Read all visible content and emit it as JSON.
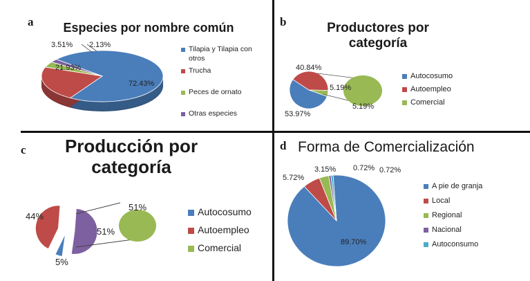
{
  "panels": [
    {
      "id": "a",
      "letter": "a",
      "title_lines": [
        "Especies por nombre común"
      ],
      "colors": [
        "#4a7ebb",
        "#be4b48",
        "#98b954",
        "#7d60a0"
      ],
      "legend_labels": [
        [
          "Tilapia y Tilapia con",
          "otros"
        ],
        [
          "Trucha"
        ],
        [
          "Peces de ornato"
        ],
        [
          "Otras especies"
        ]
      ],
      "data_labels": [
        "72.43%",
        "21.93%",
        "3.51%",
        "2.13%"
      ]
    },
    {
      "id": "b",
      "letter": "b",
      "title_lines": [
        "Productores por",
        "categoría"
      ],
      "colors": [
        "#4a7ebb",
        "#be4b48",
        "#98b954"
      ],
      "legend_labels": [
        [
          "Autocosumo"
        ],
        [
          "Autoempleo"
        ],
        [
          "Comercial"
        ]
      ],
      "data_labels": [
        "53.97%",
        "40.84%",
        "5.19%",
        "5.19%"
      ]
    },
    {
      "id": "c",
      "letter": "c",
      "title_lines": [
        "Producción por",
        "categoría"
      ],
      "colors": [
        "#4a7ebb",
        "#be4b48",
        "#98b954",
        "#7d60a0"
      ],
      "legend_labels": [
        [
          "Autocosumo"
        ],
        [
          "Autoempleo"
        ],
        [
          "Comercial"
        ]
      ],
      "data_labels": [
        "5%",
        "44%",
        "51%",
        "51%"
      ]
    },
    {
      "id": "d",
      "letter": "d",
      "title_lines": [
        "Forma de Comercialización"
      ],
      "colors": [
        "#4a7ebb",
        "#be4b48",
        "#98b954",
        "#7d60a0",
        "#4bacc6"
      ],
      "legend_labels": [
        [
          "A pie de granja"
        ],
        [
          "Local"
        ],
        [
          "Regional"
        ],
        [
          "Nacional"
        ],
        [
          "Autoconsumo"
        ]
      ],
      "data_labels": [
        "89.70%",
        "5.72%",
        "3.15%",
        "0.72%",
        "0.72%"
      ]
    }
  ],
  "chart_data": [
    {
      "type": "pie",
      "title": "Especies por nombre común",
      "categories": [
        "Tilapia y Tilapia con otros",
        "Trucha",
        "Peces de ornato",
        "Otras especies"
      ],
      "values": [
        72.43,
        21.93,
        3.51,
        2.13
      ],
      "legend": "right",
      "style": "3d"
    },
    {
      "type": "pie",
      "title": "Productores por categoría",
      "categories": [
        "Autocosumo",
        "Autoempleo",
        "Comercial"
      ],
      "values": [
        53.97,
        40.84,
        5.19
      ],
      "exploded_detail": {
        "of": "Comercial",
        "values": [
          5.19
        ]
      },
      "legend": "right",
      "style": "pie-of-pie"
    },
    {
      "type": "pie",
      "title": "Producción por categoría",
      "categories": [
        "Autocosumo",
        "Autoempleo",
        "Comercial"
      ],
      "values": [
        5,
        44,
        51
      ],
      "exploded_detail": {
        "of": "Comercial",
        "values": [
          51
        ]
      },
      "legend": "right",
      "style": "pie-of-pie"
    },
    {
      "type": "pie",
      "title": "Forma de Comercialización",
      "categories": [
        "A pie de granja",
        "Local",
        "Regional",
        "Nacional",
        "Autoconsumo"
      ],
      "values": [
        89.7,
        5.72,
        3.15,
        0.72,
        0.72
      ],
      "legend": "right"
    }
  ]
}
